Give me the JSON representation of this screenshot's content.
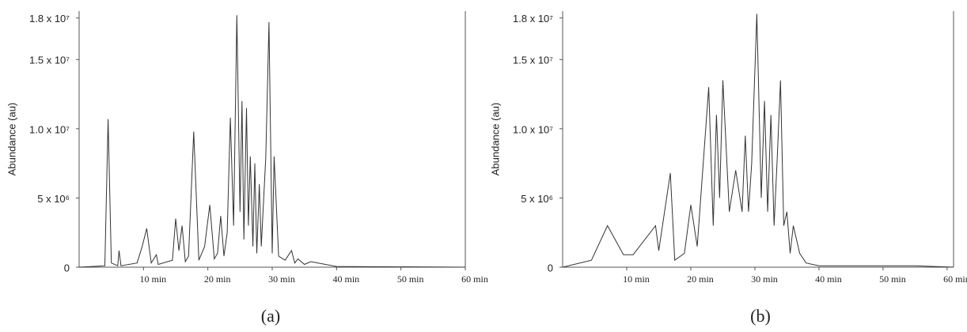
{
  "chart_data": [
    {
      "type": "line",
      "panel_label": "(a)",
      "y_label": "Abundance (au)",
      "color": "#333333",
      "x": [
        0,
        4,
        4.5,
        5,
        6,
        6.2,
        6.5,
        9,
        9.8,
        10.5,
        11.2,
        12,
        12.3,
        14.5,
        15,
        15.5,
        16,
        16.5,
        17,
        17.8,
        18.6,
        19.5,
        20.3,
        21,
        21.5,
        22,
        22.5,
        23,
        23.5,
        24,
        24.5,
        25,
        25.3,
        25.6,
        26,
        26.3,
        26.6,
        27,
        27.3,
        27.6,
        28,
        28.3,
        29,
        29.5,
        30,
        30.3,
        31,
        32,
        33,
        33.5,
        34,
        35,
        36,
        40,
        60
      ],
      "series": [
        {
          "values": [
            0,
            100000,
            10700000,
            300000,
            100000,
            1200000,
            100000,
            300000,
            1500000,
            2800000,
            300000,
            900000,
            200000,
            500000,
            3500000,
            1200000,
            3000000,
            400000,
            800000,
            9800000,
            500000,
            1500000,
            4500000,
            600000,
            1000000,
            3700000,
            800000,
            2500000,
            10800000,
            3000000,
            18200000,
            4000000,
            12000000,
            2000000,
            11500000,
            3000000,
            8000000,
            1500000,
            7500000,
            1000000,
            6000000,
            1500000,
            8000000,
            17700000,
            1000000,
            8000000,
            800000,
            500000,
            1200000,
            300000,
            600000,
            200000,
            400000,
            50000,
            0
          ]
        }
      ],
      "xlim": [
        0,
        60
      ],
      "ylim": [
        0,
        18500000
      ],
      "xticks": [
        {
          "value": 10,
          "label": "10 min"
        },
        {
          "value": 20,
          "label": "20 min"
        },
        {
          "value": 30,
          "label": "30 min"
        },
        {
          "value": 40,
          "label": "40 min"
        },
        {
          "value": 50,
          "label": "50 min"
        },
        {
          "value": 60,
          "label": "60 min"
        }
      ],
      "yticks": [
        0,
        {
          "value": 5000000,
          "label": "5 x 10⁶"
        },
        {
          "value": 10000000,
          "label": "1.0 x 10⁷"
        },
        {
          "value": 15000000,
          "label": "1.5 x 10⁷"
        },
        {
          "value": 18000000,
          "label": "1.8 x 10⁷"
        }
      ]
    },
    {
      "type": "line",
      "panel_label": "(b)",
      "y_label": "Abundance (au)",
      "color": "#333333",
      "x": [
        0,
        4.5,
        7,
        9.5,
        11,
        12,
        14.5,
        15,
        16.8,
        17.5,
        19,
        20,
        21,
        22.8,
        23.5,
        24,
        24.5,
        25,
        26,
        27,
        28,
        28.5,
        29,
        29.5,
        30.3,
        31,
        31.5,
        32,
        32.5,
        33,
        33.5,
        34,
        34.5,
        35,
        35.5,
        36,
        37,
        38,
        40,
        55,
        61
      ],
      "series": [
        {
          "values": [
            0,
            500000,
            3000000,
            900000,
            900000,
            1500000,
            3000000,
            1200000,
            6800000,
            500000,
            1000000,
            4500000,
            1500000,
            13000000,
            3000000,
            11000000,
            5000000,
            13500000,
            4000000,
            7000000,
            4000000,
            9500000,
            4000000,
            7500000,
            18300000,
            5000000,
            12000000,
            4000000,
            11000000,
            3000000,
            8000000,
            13500000,
            3000000,
            4000000,
            1000000,
            3000000,
            1000000,
            300000,
            100000,
            100000,
            0
          ]
        }
      ],
      "xlim": [
        0,
        61
      ],
      "ylim": [
        0,
        18500000
      ],
      "xticks": [
        {
          "value": 10,
          "label": "10 min"
        },
        {
          "value": 20,
          "label": "20 min"
        },
        {
          "value": 30,
          "label": "30 min"
        },
        {
          "value": 40,
          "label": "40 min"
        },
        {
          "value": 50,
          "label": "50 min"
        },
        {
          "value": 60,
          "label": "60 min"
        }
      ],
      "yticks": [
        0,
        {
          "value": 5000000,
          "label": "5 x 10⁶"
        },
        {
          "value": 10000000,
          "label": "1.0 x 10⁷"
        },
        {
          "value": 15000000,
          "label": "1.5 x 10⁷"
        },
        {
          "value": 18000000,
          "label": "1.8 x 10⁷"
        }
      ]
    }
  ]
}
